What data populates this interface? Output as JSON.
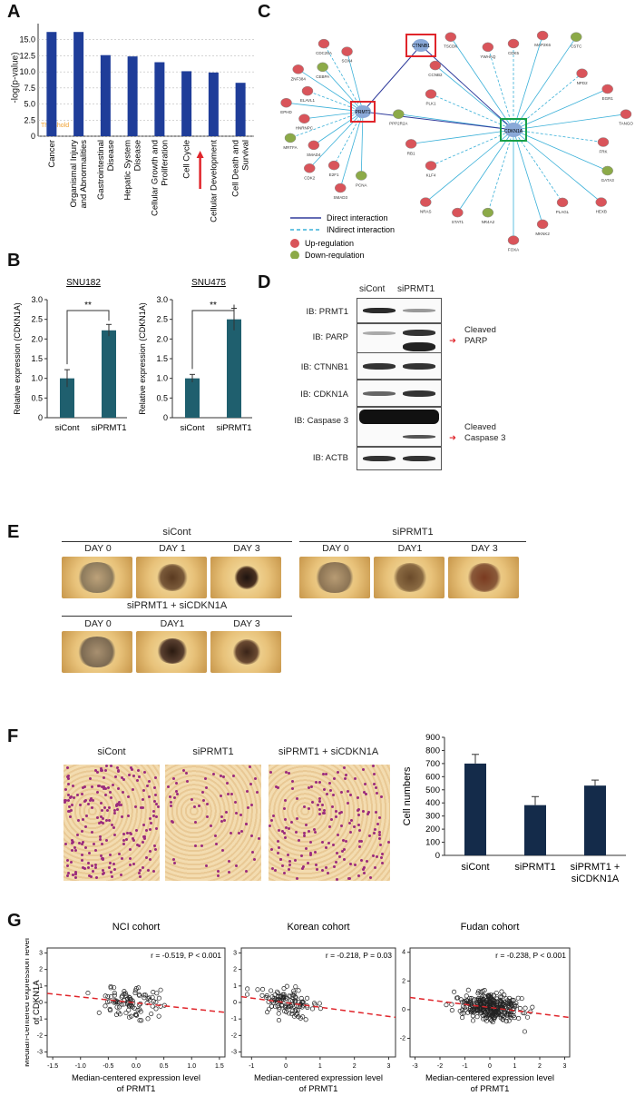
{
  "panels": {
    "A": "A",
    "B": "B",
    "C": "C",
    "D": "D",
    "E": "E",
    "F": "F",
    "G": "G"
  },
  "panelA": {
    "ylabel": "-log(p-value)",
    "threshold_label": "Threshold",
    "chart_data": {
      "type": "bar",
      "categories": [
        "Cancer",
        "Organismal Injury and Abnormalities",
        "Gastrointestinal Disease",
        "Hepatic System Disease",
        "Cellular Growth and Proliferation",
        "Cell Cycle",
        "Cellular Development",
        "Cell Death and Survival"
      ],
      "values": [
        16.2,
        16.2,
        12.6,
        12.4,
        11.5,
        10.1,
        9.9,
        8.3
      ],
      "ylim": [
        0,
        17.5
      ],
      "yticks": [
        "0",
        "2.5",
        "5.0",
        "7.5",
        "10.0",
        "12.5",
        "15.0"
      ],
      "threshold": 1.3,
      "highlight": "Cell Cycle",
      "colors": {
        "bar": "#1f3d99",
        "threshold": "#f0a030",
        "arrow": "#e0252b"
      }
    }
  },
  "panelB": {
    "ylabel": "Relative expression (CDKN1A)",
    "yticks": [
      "0",
      "0.5",
      "1.0",
      "1.5",
      "2.0",
      "2.5",
      "3.0"
    ],
    "charts": [
      {
        "title": "SNU182",
        "sig": "**",
        "chart_data": {
          "type": "bar",
          "categories": [
            "siCont",
            "siPRMT1"
          ],
          "values": [
            1.0,
            2.22
          ],
          "errors": [
            0.22,
            0.15
          ],
          "ylim": [
            0,
            3.0
          ]
        }
      },
      {
        "title": "SNU475",
        "sig": "**",
        "chart_data": {
          "type": "bar",
          "categories": [
            "siCont",
            "siPRMT1"
          ],
          "values": [
            1.0,
            2.5
          ],
          "errors": [
            0.1,
            0.28
          ],
          "ylim": [
            0,
            3.0
          ]
        }
      }
    ],
    "colors": {
      "bar": "#1f5f6e"
    }
  },
  "panelC": {
    "center_node": "CDKN1A",
    "boxed_nodes": [
      "PRMT1",
      "CTNNB1"
    ],
    "nodes": [
      "CDK5",
      "MAP2K6",
      "CSTC",
      "NPD2",
      "EGR1",
      "TANGO",
      "FRK",
      "GATA3",
      "HEXB",
      "PLAGL",
      "MKNK2",
      "FOXA",
      "NR4A2",
      "STAT1",
      "NRAS",
      "KLF4",
      "RB1",
      "PPP2R2A",
      "PLK1",
      "CCNB2",
      "TSCDK",
      "YWHAQ",
      "PCNA",
      "SMAD3",
      "E2F1",
      "CDK2",
      "SMAD4",
      "MRTFA",
      "HNRNPC",
      "EPHD",
      "ELAVL1",
      "ZNF384",
      "CEBPA",
      "CDC25A",
      "SOX4"
    ],
    "legend": [
      "Direct interaction",
      "INdirect interaction",
      "Up-regulation",
      "Down-regulation"
    ],
    "colors": {
      "direct": "#303c9c",
      "indirect": "#3ab0d8",
      "up": "#d9545a",
      "down": "#8caa48",
      "box_red": "#e0252b",
      "box_green": "#18a048"
    }
  },
  "panelD": {
    "col_labels": [
      "siCont",
      "siPRMT1"
    ],
    "blots": [
      "IB: PRMT1",
      "IB: PARP",
      "IB: CTNNB1",
      "IB: CDKN1A",
      "IB: Caspase 3",
      "IB: ACTB"
    ],
    "annotations": [
      "Cleaved PARP",
      "Cleaved Caspase 3"
    ]
  },
  "panelE": {
    "groups": [
      {
        "title": "siCont",
        "days": [
          "DAY 0",
          "DAY 1",
          "DAY 3"
        ]
      },
      {
        "title": "siPRMT1",
        "days": [
          "DAY 0",
          "DAY1",
          "DAY 3"
        ]
      },
      {
        "title": "siPRMT1 + siCDKN1A",
        "days": [
          "DAY 0",
          "DAY1",
          "DAY 3"
        ]
      }
    ]
  },
  "panelF": {
    "image_labels": [
      "siCont",
      "siPRMT1",
      "siPRMT1 + siCDKN1A"
    ],
    "ylabel": "Cell numbers",
    "chart_data": {
      "type": "bar",
      "categories": [
        "siCont",
        "siPRMT1",
        "siPRMT1 + siCDKN1A"
      ],
      "values": [
        700,
        383,
        532
      ],
      "errors": [
        70,
        65,
        42
      ],
      "ylim": [
        0,
        900
      ],
      "yticks": [
        "0",
        "100",
        "200",
        "300",
        "400",
        "500",
        "600",
        "700",
        "800",
        "900"
      ]
    },
    "colors": {
      "bar": "#142b4a"
    }
  },
  "panelG": {
    "ylabel": "Median-centered expression level of CDKN1A",
    "xlabel": "Median-centered expression level of PRMT1",
    "charts": [
      {
        "title": "NCI cohort",
        "stat": "r = -0.519, P < 0.001",
        "chart_data": {
          "type": "scatter",
          "xlim": [
            -1.6,
            1.6
          ],
          "ylim": [
            -3.3,
            3.3
          ],
          "xticks": [
            "-1.5",
            "-1.0",
            "-0.5",
            "0.0",
            "0.5",
            "1.0",
            "1.5"
          ],
          "yticks": [
            "-3",
            "-2",
            "-1",
            "0",
            "1",
            "2",
            "3"
          ],
          "trend": [
            [
              -1.6,
              0.55
            ],
            [
              1.6,
              -0.6
            ]
          ]
        }
      },
      {
        "title": "Korean cohort",
        "stat": "r = -0.218, P = 0.03",
        "chart_data": {
          "type": "scatter",
          "xlim": [
            -1.3,
            3.2
          ],
          "ylim": [
            -3.3,
            3.3
          ],
          "xticks": [
            "-1",
            "0",
            "1",
            "2",
            "3"
          ],
          "yticks": [
            "-3",
            "-2",
            "-1",
            "0",
            "1",
            "2",
            "3"
          ],
          "trend": [
            [
              -1.3,
              0.35
            ],
            [
              3.2,
              -0.9
            ]
          ]
        }
      },
      {
        "title": "Fudan cohort",
        "stat": "r = -0.238, P < 0.001",
        "chart_data": {
          "type": "scatter",
          "xlim": [
            -3.2,
            3.2
          ],
          "ylim": [
            -3.3,
            4.3
          ],
          "xticks": [
            "-3",
            "-2",
            "-1",
            "0",
            "1",
            "2",
            "3"
          ],
          "yticks": [
            "-2",
            "0",
            "2",
            "4"
          ],
          "trend": [
            [
              -3.2,
              0.85
            ],
            [
              3.2,
              -0.55
            ]
          ]
        }
      }
    ],
    "colors": {
      "trend": "#e0252b"
    }
  }
}
